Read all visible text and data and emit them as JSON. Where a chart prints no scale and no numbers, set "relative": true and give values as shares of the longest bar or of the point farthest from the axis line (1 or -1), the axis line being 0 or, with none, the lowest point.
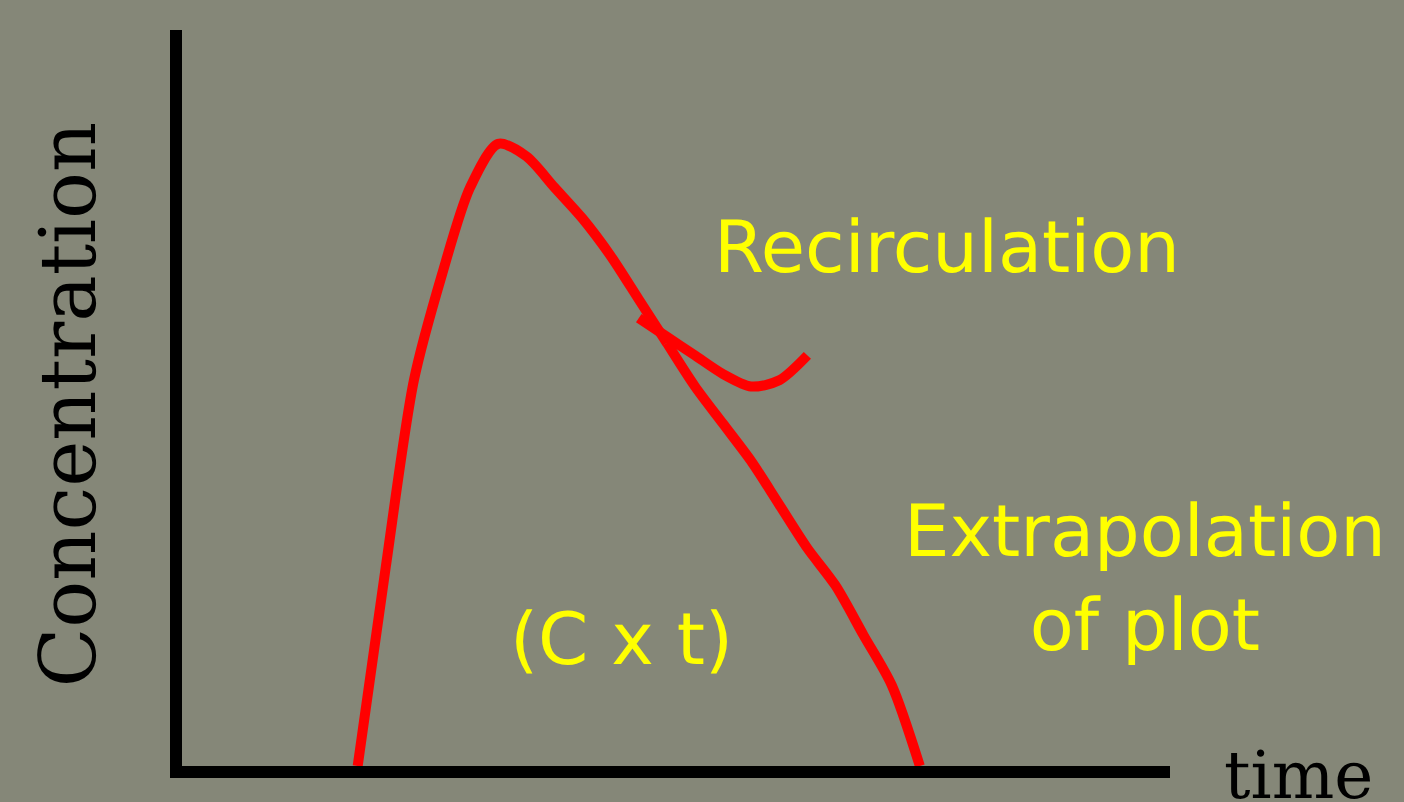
{
  "chart_data": {
    "type": "line",
    "relative": true,
    "xlabel": "time",
    "ylabel": "Concentration",
    "categories": [
      null,
      null,
      null,
      null,
      null,
      null,
      null,
      null,
      null,
      null,
      null,
      null,
      null,
      null,
      null,
      null,
      null,
      null,
      null,
      null,
      null,
      null,
      null,
      null,
      null,
      null,
      null,
      null,
      null,
      null,
      null,
      null,
      null,
      null,
      null
    ],
    "annotations": [
      "(C x t)"
    ],
    "series": [
      {
        "color": "#ff0000",
        "values": [
          null,
          null,
          null,
          null,
          null,
          null,
          0,
          0.32,
          0.62,
          0.79,
          0.93,
          1,
          0.98,
          0.93,
          0.88,
          0.82,
          0.75,
          0.68,
          null,
          null,
          null,
          null,
          null,
          null,
          null,
          null,
          null,
          null,
          null,
          null,
          null,
          null,
          null,
          null,
          null
        ]
      },
      {
        "name": "Recirculation",
        "color": "#ff0000",
        "values": [
          null,
          null,
          null,
          null,
          null,
          null,
          null,
          null,
          null,
          null,
          null,
          null,
          null,
          null,
          null,
          null,
          0.72,
          0.69,
          0.66,
          0.63,
          0.61,
          0.62,
          0.66,
          null,
          null,
          null,
          null,
          null,
          null,
          null,
          null,
          null,
          null,
          null,
          null
        ]
      },
      {
        "name": "Extrapolation of plot",
        "color": "#ff0000",
        "values": [
          null,
          null,
          null,
          null,
          null,
          null,
          null,
          null,
          null,
          null,
          null,
          null,
          null,
          null,
          null,
          null,
          null,
          0.68,
          0.61,
          0.55,
          0.49,
          0.42,
          0.35,
          0.29,
          0.21,
          0.13,
          0,
          null,
          null,
          null,
          null,
          null,
          null,
          null,
          null
        ]
      }
    ]
  }
}
